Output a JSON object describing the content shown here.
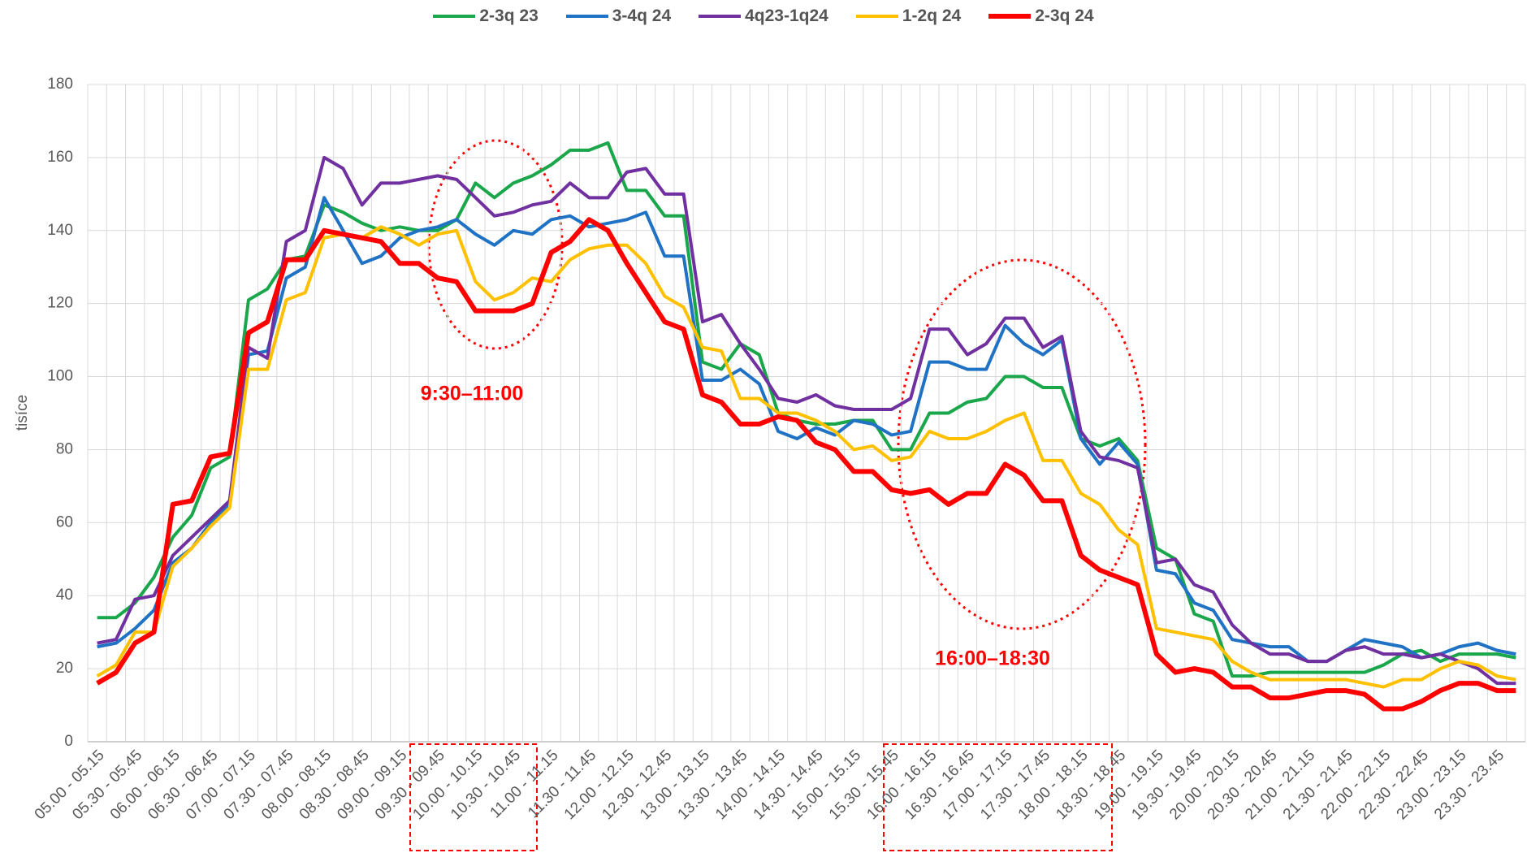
{
  "chart_data": {
    "type": "line",
    "y_label": "tisíce",
    "categories": [
      "05.00 - 05.15",
      null,
      "05.30 - 05.45",
      null,
      "06.00 - 06.15",
      null,
      "06.30 - 06.45",
      null,
      "07.00 - 07.15",
      null,
      "07.30 - 07.45",
      null,
      "08.00 - 08.15",
      null,
      "08.30 - 08.45",
      null,
      "09.00 - 09.15",
      null,
      "09.30 - 09.45",
      null,
      "10.00 - 10.15",
      null,
      "10.30 - 10.45",
      null,
      "11.00 - 11.15",
      null,
      "11.30 - 11.45",
      null,
      "12.00 - 12.15",
      null,
      "12.30 - 12.45",
      null,
      "13.00 - 13.15",
      null,
      "13.30 - 13.45",
      null,
      "14.00 - 14.15",
      null,
      "14.30 - 14.45",
      null,
      "15.00 - 15.15",
      null,
      "15.30 - 15.45",
      null,
      "16.00 - 16.15",
      null,
      "16.30 - 16.45",
      null,
      "17.00 - 17.15",
      null,
      "17.30 - 17.45",
      null,
      "18.00 - 18.15",
      null,
      "18.30 - 18.45",
      null,
      "19.00 - 19.15",
      null,
      "19.30 - 19.45",
      null,
      "20.00 - 20.15",
      null,
      "20.30 - 20.45",
      null,
      "21.00 - 21.15",
      null,
      "21.30 - 21.45",
      null,
      "22.00 - 22.15",
      null,
      "22.30 - 22.45",
      null,
      "23.00 - 23.15",
      null,
      "23.30 - 23.45",
      null
    ],
    "series": [
      {
        "name": "2-3q 23",
        "color": "#1aa64a",
        "line_width": 4,
        "values": [
          34,
          34,
          38,
          45,
          56,
          62,
          75,
          78,
          121,
          124,
          132,
          133,
          147,
          145,
          142,
          140,
          141,
          140,
          140,
          143,
          153,
          149,
          153,
          155,
          158,
          162,
          162,
          164,
          151,
          151,
          144,
          144,
          104,
          102,
          109,
          106,
          90,
          88,
          87,
          87,
          88,
          88,
          80,
          80,
          90,
          90,
          93,
          94,
          100,
          100,
          97,
          97,
          83,
          81,
          83,
          77,
          53,
          50,
          35,
          33,
          18,
          18,
          19,
          19,
          19,
          19,
          19,
          19,
          21,
          24,
          25,
          22,
          24,
          24,
          24,
          23
        ]
      },
      {
        "name": "3-4q 24",
        "color": "#1f72c4",
        "line_width": 4,
        "values": [
          26,
          27,
          31,
          36,
          49,
          53,
          60,
          65,
          106,
          107,
          127,
          130,
          149,
          140,
          131,
          133,
          138,
          140,
          141,
          143,
          139,
          136,
          140,
          139,
          143,
          144,
          141,
          142,
          143,
          145,
          133,
          133,
          99,
          99,
          102,
          98,
          85,
          83,
          86,
          84,
          88,
          87,
          84,
          85,
          104,
          104,
          102,
          102,
          114,
          109,
          106,
          110,
          83,
          76,
          82,
          76,
          47,
          46,
          38,
          36,
          28,
          27,
          26,
          26,
          22,
          22,
          25,
          28,
          27,
          26,
          23,
          24,
          26,
          27,
          25,
          24
        ]
      },
      {
        "name": "4q23-1q24",
        "color": "#7030a0",
        "line_width": 4,
        "values": [
          27,
          28,
          39,
          40,
          51,
          56,
          61,
          66,
          108,
          105,
          137,
          140,
          160,
          157,
          147,
          153,
          153,
          154,
          155,
          154,
          149,
          144,
          145,
          147,
          148,
          153,
          149,
          149,
          156,
          157,
          150,
          150,
          115,
          117,
          109,
          102,
          94,
          93,
          95,
          92,
          91,
          91,
          91,
          94,
          113,
          113,
          106,
          109,
          116,
          116,
          108,
          111,
          85,
          78,
          77,
          75,
          49,
          50,
          43,
          41,
          32,
          27,
          24,
          24,
          22,
          22,
          25,
          26,
          24,
          24,
          23,
          24,
          22,
          20,
          16,
          16
        ]
      },
      {
        "name": "1-2q 24",
        "color": "#ffc000",
        "line_width": 4,
        "values": [
          18,
          21,
          30,
          30,
          48,
          53,
          59,
          64,
          102,
          102,
          121,
          123,
          138,
          139,
          138,
          141,
          139,
          136,
          139,
          140,
          126,
          121,
          123,
          127,
          126,
          132,
          135,
          136,
          136,
          131,
          122,
          119,
          108,
          107,
          94,
          94,
          90,
          90,
          88,
          85,
          80,
          81,
          77,
          78,
          85,
          83,
          83,
          85,
          88,
          90,
          77,
          77,
          68,
          65,
          58,
          54,
          31,
          30,
          29,
          28,
          22,
          19,
          17,
          17,
          17,
          17,
          17,
          16,
          15,
          17,
          17,
          20,
          22,
          21,
          18,
          17
        ]
      },
      {
        "name": "2-3q 24",
        "color": "#ff0000",
        "line_width": 6,
        "values": [
          16,
          19,
          27,
          30,
          65,
          66,
          78,
          79,
          112,
          115,
          132,
          132,
          140,
          139,
          138,
          137,
          131,
          131,
          127,
          126,
          118,
          118,
          118,
          120,
          134,
          137,
          143,
          140,
          131,
          123,
          115,
          113,
          95,
          93,
          87,
          87,
          89,
          88,
          82,
          80,
          74,
          74,
          69,
          68,
          69,
          65,
          68,
          68,
          76,
          73,
          66,
          66,
          51,
          47,
          45,
          43,
          24,
          19,
          20,
          19,
          15,
          15,
          12,
          12,
          13,
          14,
          14,
          13,
          9,
          9,
          11,
          14,
          16,
          16,
          14,
          14
        ]
      }
    ],
    "ylim": [
      0,
      180
    ],
    "yticks": [
      0,
      20,
      40,
      60,
      80,
      100,
      120,
      140,
      160,
      180
    ],
    "grid": true,
    "legend": "top",
    "annotations": [
      {
        "text": "9:30–11:00",
        "color": "#ff0000"
      },
      {
        "text": "16:00–18:30",
        "color": "#ff0000"
      }
    ]
  }
}
